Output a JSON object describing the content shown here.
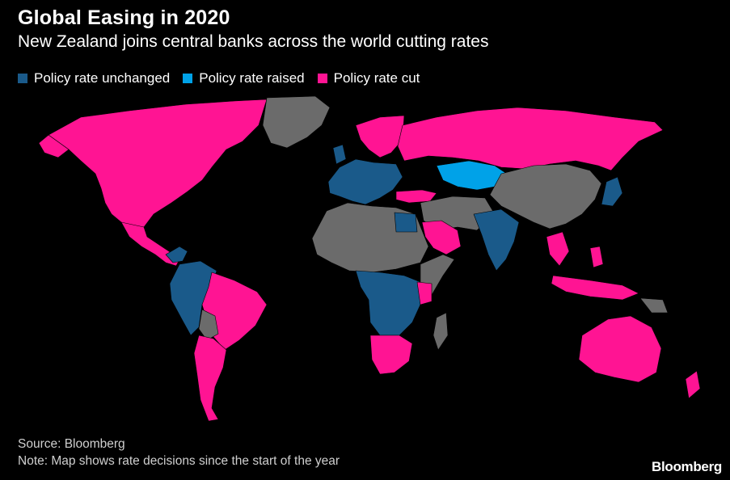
{
  "header": {
    "title": "Global Easing in 2020",
    "subtitle": "New Zealand joins central banks across the world cutting rates"
  },
  "legend": [
    {
      "label": "Policy rate unchanged",
      "color": "#1a5a8a"
    },
    {
      "label": "Policy rate raised",
      "color": "#00a2e8"
    },
    {
      "label": "Policy rate cut",
      "color": "#ff1493"
    }
  ],
  "map": {
    "no_data_color": "#6b6b6b",
    "regions": [
      {
        "name": "north-america",
        "status": "cut"
      },
      {
        "name": "greenland",
        "status": "none"
      },
      {
        "name": "mexico-central-america",
        "status": "cut"
      },
      {
        "name": "south-america-west",
        "status": "unchanged"
      },
      {
        "name": "brazil",
        "status": "cut"
      },
      {
        "name": "southern-cone",
        "status": "cut"
      },
      {
        "name": "western-europe",
        "status": "unchanged"
      },
      {
        "name": "scandinavia",
        "status": "cut"
      },
      {
        "name": "russia",
        "status": "cut"
      },
      {
        "name": "kazakhstan",
        "status": "raised"
      },
      {
        "name": "turkey",
        "status": "cut"
      },
      {
        "name": "north-africa",
        "status": "none"
      },
      {
        "name": "central-africa",
        "status": "unchanged"
      },
      {
        "name": "southern-africa",
        "status": "cut"
      },
      {
        "name": "horn-africa",
        "status": "none"
      },
      {
        "name": "middle-east",
        "status": "none"
      },
      {
        "name": "saudi-arabia",
        "status": "cut"
      },
      {
        "name": "china-mongolia",
        "status": "none"
      },
      {
        "name": "india",
        "status": "unchanged"
      },
      {
        "name": "southeast-asia",
        "status": "cut"
      },
      {
        "name": "japan",
        "status": "unchanged"
      },
      {
        "name": "indonesia",
        "status": "cut"
      },
      {
        "name": "australia",
        "status": "cut"
      },
      {
        "name": "new-zealand",
        "status": "cut"
      }
    ]
  },
  "footer": {
    "source": "Source: Bloomberg",
    "note": "Note: Map shows rate decisions since the start of the year",
    "brand": "Bloomberg"
  }
}
